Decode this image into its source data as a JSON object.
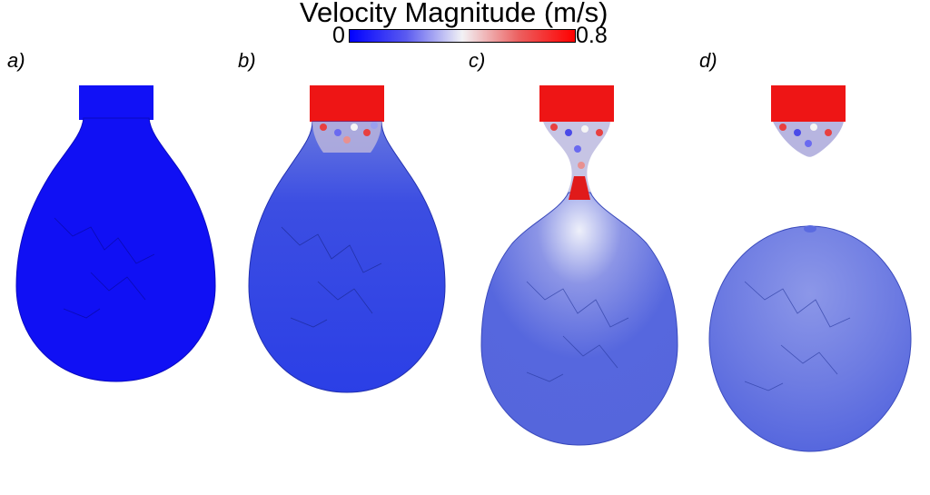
{
  "colorbar": {
    "title": "Velocity Magnitude (m/s)",
    "min_label": "0",
    "max_label": "0.8",
    "colors": [
      "#0000ff",
      "#f2f2f5",
      "#ff0000"
    ]
  },
  "panels": [
    {
      "label": "a)"
    },
    {
      "label": "b)"
    },
    {
      "label": "c)"
    },
    {
      "label": "d)"
    }
  ]
}
